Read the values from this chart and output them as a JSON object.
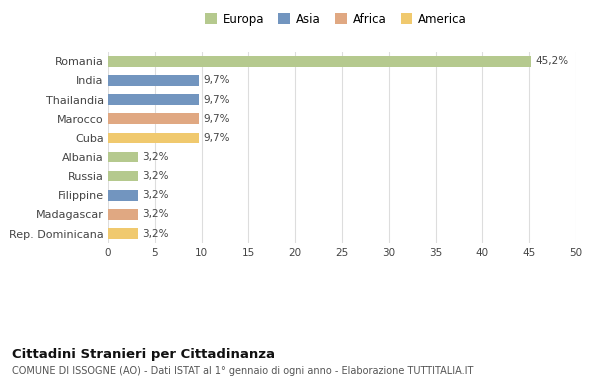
{
  "categories": [
    "Romania",
    "India",
    "Thailandia",
    "Marocco",
    "Cuba",
    "Albania",
    "Russia",
    "Filippine",
    "Madagascar",
    "Rep. Dominicana"
  ],
  "values": [
    45.2,
    9.7,
    9.7,
    9.7,
    9.7,
    3.2,
    3.2,
    3.2,
    3.2,
    3.2
  ],
  "labels": [
    "45,2%",
    "9,7%",
    "9,7%",
    "9,7%",
    "9,7%",
    "3,2%",
    "3,2%",
    "3,2%",
    "3,2%",
    "3,2%"
  ],
  "colors": [
    "#b5c98e",
    "#7295bf",
    "#7295bf",
    "#e0a882",
    "#f0c96e",
    "#b5c98e",
    "#b5c98e",
    "#7295bf",
    "#e0a882",
    "#f0c96e"
  ],
  "legend_labels": [
    "Europa",
    "Asia",
    "Africa",
    "America"
  ],
  "legend_colors": [
    "#b5c98e",
    "#7295bf",
    "#e0a882",
    "#f0c96e"
  ],
  "xlim": [
    0,
    50
  ],
  "xticks": [
    0,
    5,
    10,
    15,
    20,
    25,
    30,
    35,
    40,
    45,
    50
  ],
  "title": "Cittadini Stranieri per Cittadinanza",
  "subtitle": "COMUNE DI ISSOGNE (AO) - Dati ISTAT al 1° gennaio di ogni anno - Elaborazione TUTTITALIA.IT",
  "background_color": "#ffffff",
  "grid_color": "#dddddd",
  "bar_height": 0.55
}
